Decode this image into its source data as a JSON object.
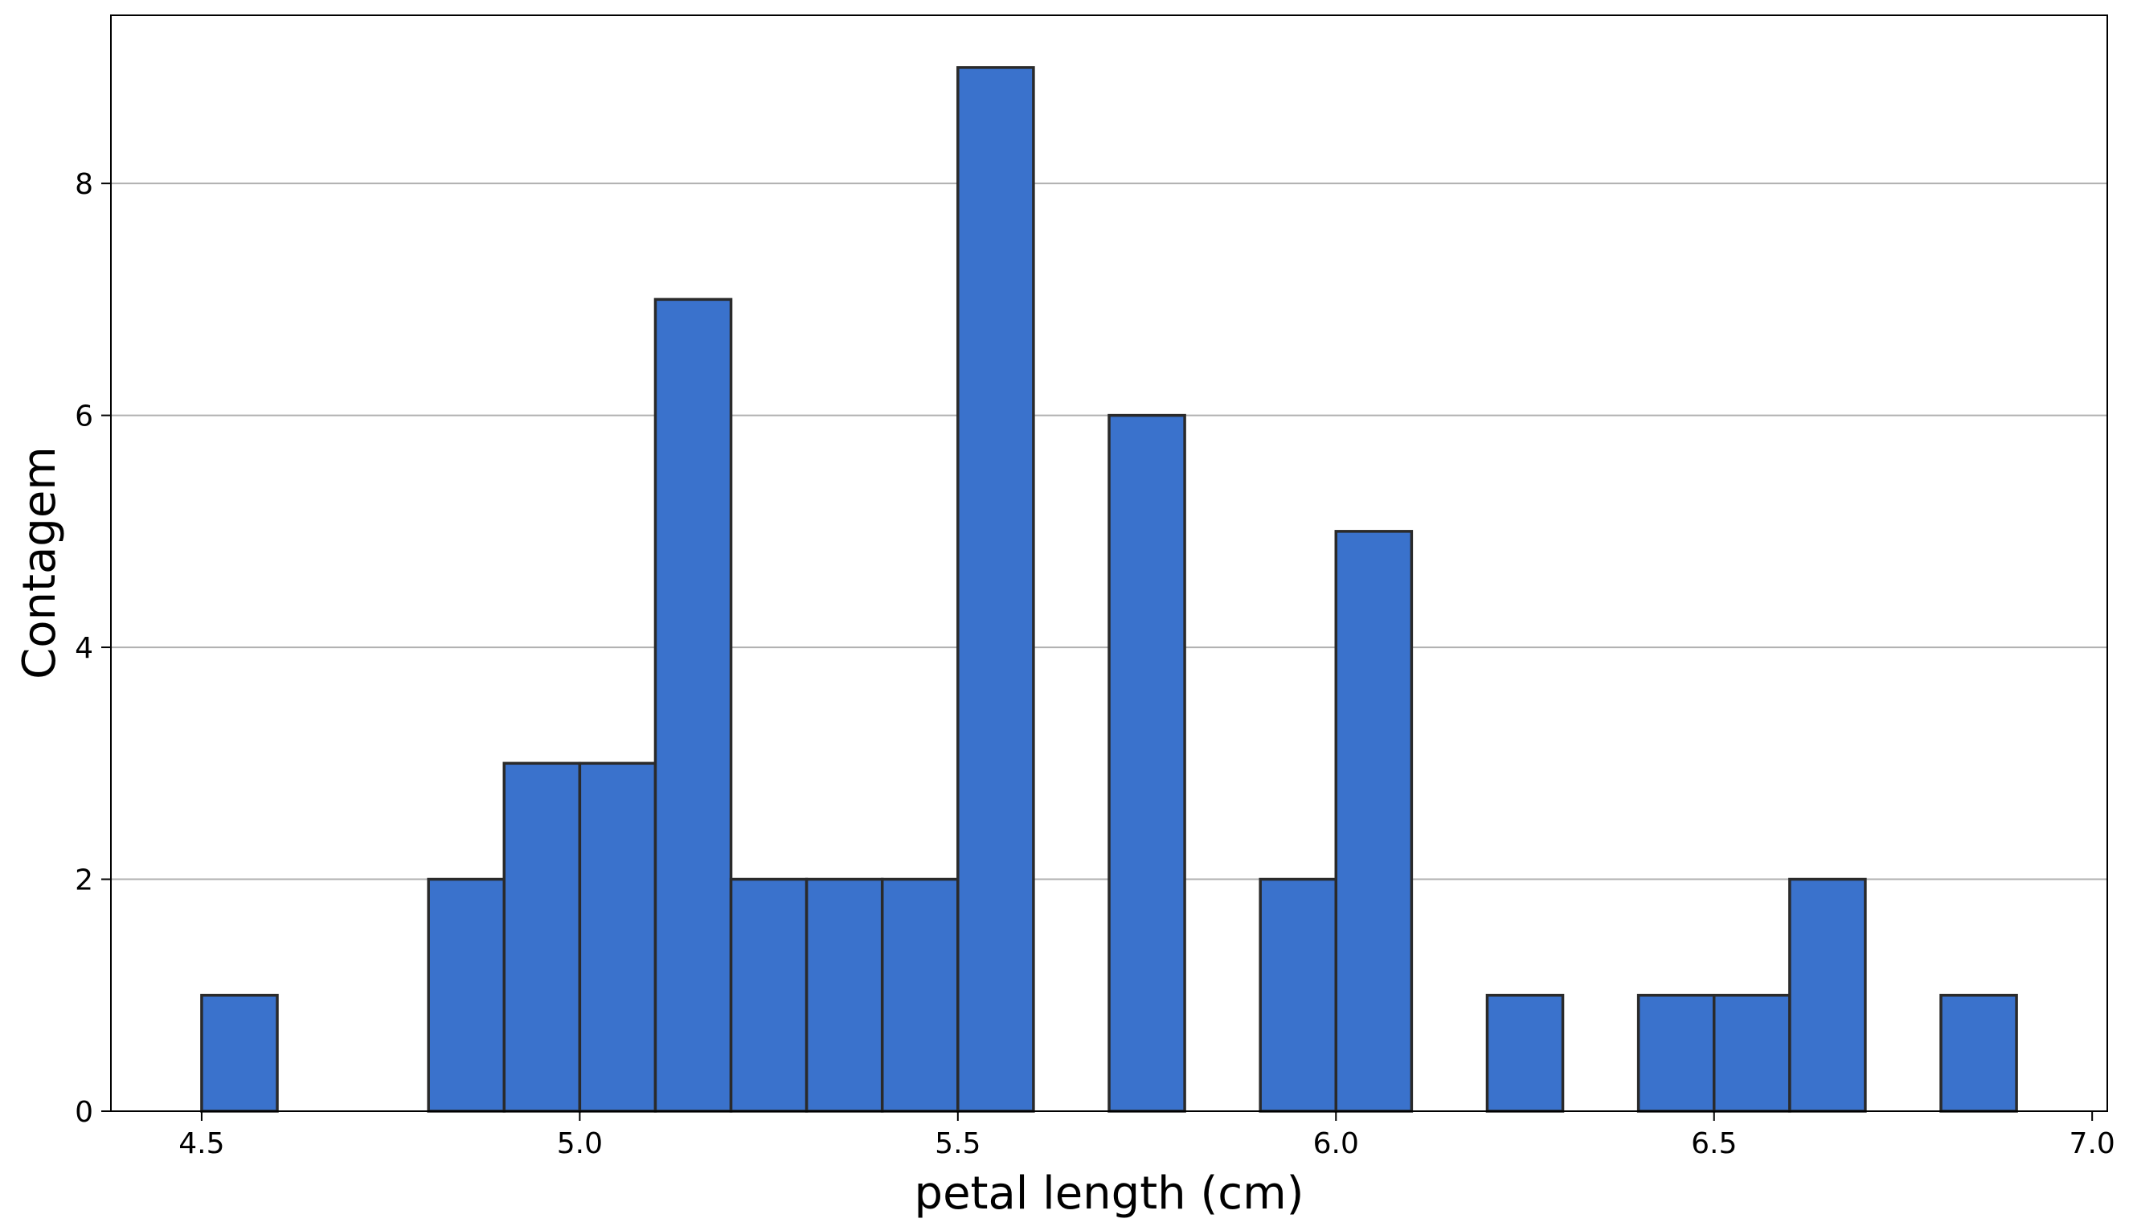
{
  "chart_data": {
    "type": "bar",
    "title": "",
    "xlabel": "petal length (cm)",
    "ylabel": "Contagem",
    "xlim": [
      4.38,
      7.02
    ],
    "ylim": [
      0,
      9.45
    ],
    "xticks": [
      4.5,
      5.0,
      5.5,
      6.0,
      6.5,
      7.0
    ],
    "xtick_labels": [
      "4.5",
      "5.0",
      "5.5",
      "6.0",
      "6.5",
      "7.0"
    ],
    "yticks": [
      0,
      2,
      4,
      6,
      8
    ],
    "ytick_labels": [
      "0",
      "2",
      "4",
      "6",
      "8"
    ],
    "grid": "horizontal",
    "bin_width": 0.1,
    "bins": [
      {
        "start": 4.5,
        "count": 1
      },
      {
        "start": 4.6,
        "count": 0
      },
      {
        "start": 4.7,
        "count": 0
      },
      {
        "start": 4.8,
        "count": 2
      },
      {
        "start": 4.9,
        "count": 3
      },
      {
        "start": 5.0,
        "count": 3
      },
      {
        "start": 5.1,
        "count": 7
      },
      {
        "start": 5.2,
        "count": 2
      },
      {
        "start": 5.3,
        "count": 2
      },
      {
        "start": 5.4,
        "count": 2
      },
      {
        "start": 5.5,
        "count": 9
      },
      {
        "start": 5.6,
        "count": 0
      },
      {
        "start": 5.7,
        "count": 6
      },
      {
        "start": 5.8,
        "count": 0
      },
      {
        "start": 5.9,
        "count": 2
      },
      {
        "start": 6.0,
        "count": 5
      },
      {
        "start": 6.1,
        "count": 0
      },
      {
        "start": 6.2,
        "count": 1
      },
      {
        "start": 6.3,
        "count": 0
      },
      {
        "start": 6.4,
        "count": 1
      },
      {
        "start": 6.5,
        "count": 1
      },
      {
        "start": 6.6,
        "count": 2
      },
      {
        "start": 6.7,
        "count": 0
      },
      {
        "start": 6.8,
        "count": 1
      }
    ],
    "colors": {
      "bar_fill": "#3a72cc",
      "bar_edge": "#2a2a2a",
      "grid": "#b0b0b0",
      "axis": "#000000"
    }
  }
}
